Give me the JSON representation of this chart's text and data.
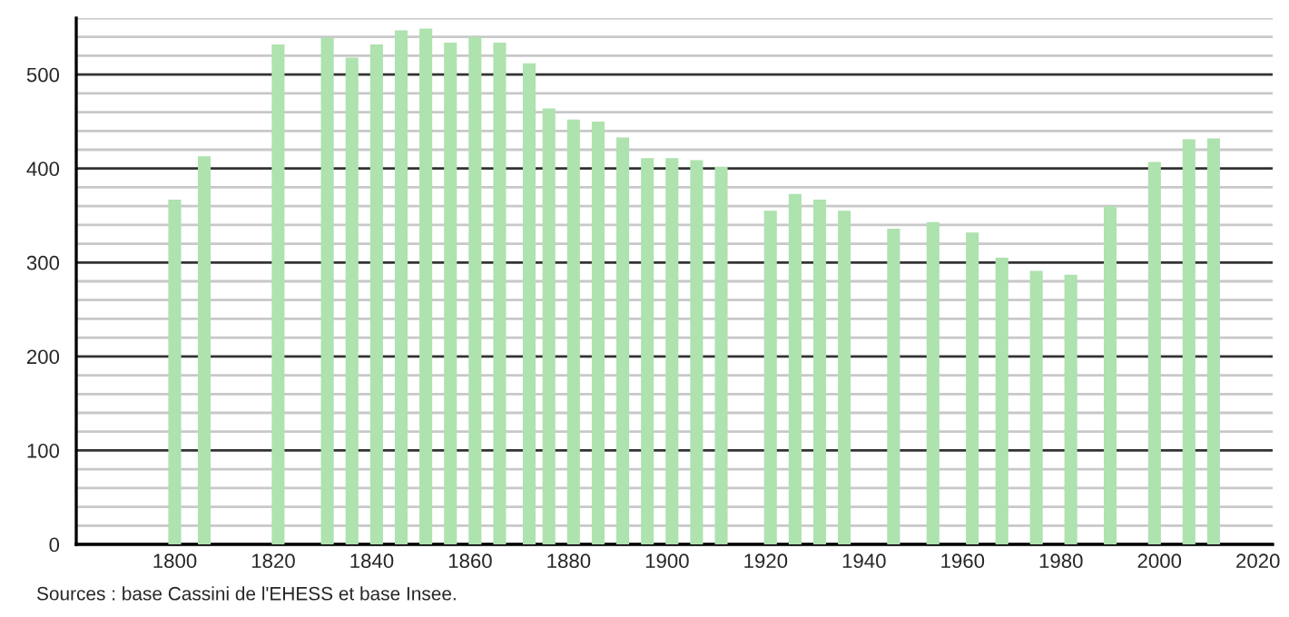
{
  "chart_data": {
    "type": "bar",
    "x": [
      1800,
      1806,
      1821,
      1831,
      1836,
      1841,
      1846,
      1851,
      1856,
      1861,
      1866,
      1872,
      1876,
      1881,
      1886,
      1891,
      1896,
      1901,
      1906,
      1911,
      1921,
      1926,
      1931,
      1936,
      1946,
      1954,
      1962,
      1968,
      1975,
      1982,
      1990,
      1999,
      2006,
      2011
    ],
    "values": [
      367,
      413,
      532,
      539,
      518,
      532,
      547,
      549,
      534,
      540,
      534,
      512,
      464,
      452,
      450,
      433,
      411,
      411,
      409,
      402,
      355,
      373,
      367,
      355,
      336,
      343,
      332,
      305,
      291,
      287,
      360,
      407,
      431,
      432
    ],
    "color": "#aee2ae",
    "xlim": [
      1780,
      2023
    ],
    "xticks": [
      1800,
      1820,
      1840,
      1860,
      1880,
      1900,
      1920,
      1940,
      1960,
      1980,
      2000,
      2020
    ],
    "ylim": [
      0,
      560
    ],
    "yticks": [
      0,
      {
        "value": 20,
        "label": null
      },
      {
        "value": 40,
        "label": null
      },
      {
        "value": 60,
        "label": null
      },
      {
        "value": 80,
        "label": null
      },
      100,
      {
        "value": 120,
        "label": null
      },
      {
        "value": 140,
        "label": null
      },
      {
        "value": 160,
        "label": null
      },
      {
        "value": 180,
        "label": null
      },
      200,
      {
        "value": 220,
        "label": null
      },
      {
        "value": 240,
        "label": null
      },
      {
        "value": 260,
        "label": null
      },
      {
        "value": 280,
        "label": null
      },
      300,
      {
        "value": 320,
        "label": null
      },
      {
        "value": 340,
        "label": null
      },
      {
        "value": 360,
        "label": null
      },
      {
        "value": 380,
        "label": null
      },
      400,
      {
        "value": 420,
        "label": null
      },
      {
        "value": 440,
        "label": null
      },
      {
        "value": 460,
        "label": null
      },
      {
        "value": 480,
        "label": null
      },
      500,
      {
        "value": 520,
        "label": null
      },
      {
        "value": 540,
        "label": null
      },
      {
        "value": 560,
        "label": null
      }
    ],
    "grid": "y",
    "annotations": [
      "Sources : base Cassini de l'EHESS et base Insee."
    ]
  }
}
